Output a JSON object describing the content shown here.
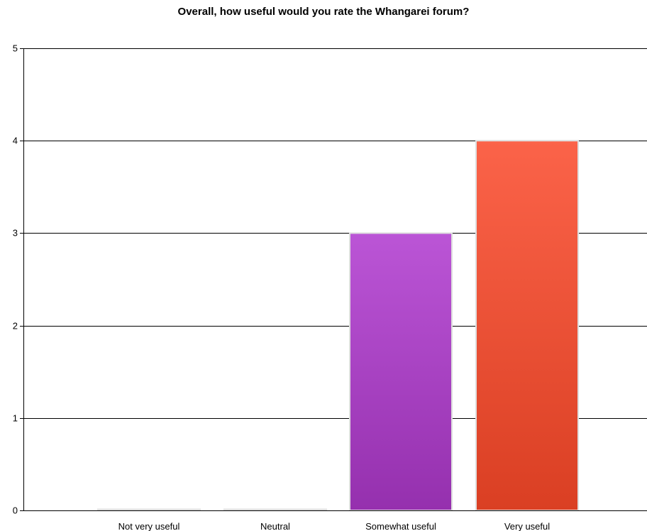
{
  "chart_data": {
    "type": "bar",
    "title": "Overall, how useful would you rate the Whangarei forum?",
    "xlabel": "",
    "ylabel": "",
    "categories": [
      "Not very useful",
      "Neutral",
      "Somewhat useful",
      "Very useful"
    ],
    "values": [
      0,
      0,
      3,
      4
    ],
    "ylim": [
      0,
      5
    ],
    "yticks": [
      0,
      1,
      2,
      3,
      4,
      5
    ],
    "grid": true,
    "legend": "none",
    "bar_colors": [
      {
        "top": "#d8d8d8",
        "bottom": "#c8c8c8"
      },
      {
        "top": "#d8d8d8",
        "bottom": "#c8c8c8"
      },
      {
        "top": "#bb55d6",
        "bottom": "#9530ae"
      },
      {
        "top": "#fb6349",
        "bottom": "#da3f23"
      }
    ],
    "bar_border_color": "#dedede",
    "grid_color": "#000000"
  }
}
